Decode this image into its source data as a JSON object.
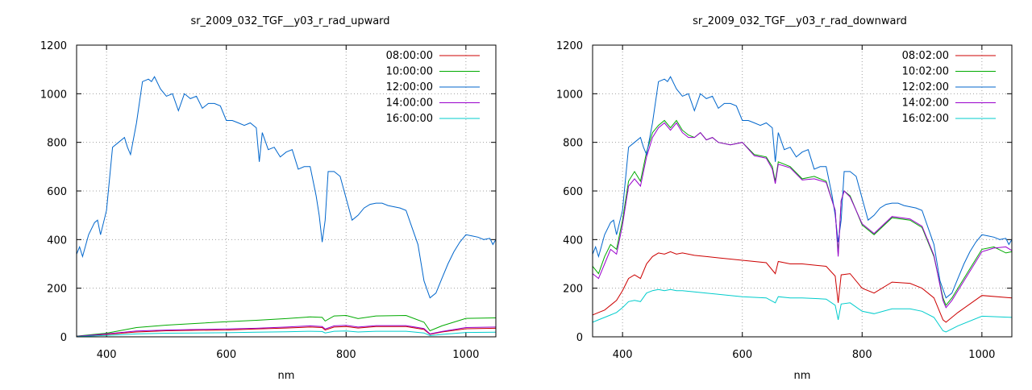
{
  "chart_data": [
    {
      "type": "line",
      "title": "sr_2009_032_TGF__y03_r_rad_upward",
      "xlabel": "nm",
      "ylabel": "",
      "xlim": [
        350,
        1050
      ],
      "ylim": [
        0,
        1200
      ],
      "xticks": [
        400,
        600,
        800,
        1000
      ],
      "yticks": [
        0,
        200,
        400,
        600,
        800,
        1000,
        1200
      ],
      "grid": true,
      "legend": "top-right",
      "series": [
        {
          "name": "08:00:00",
          "color": "#cc0000",
          "x": [
            350,
            400,
            450,
            500,
            550,
            600,
            650,
            700,
            740,
            760,
            765,
            780,
            800,
            820,
            850,
            900,
            930,
            940,
            960,
            1000,
            1050
          ],
          "y": [
            2,
            10,
            20,
            25,
            27,
            28,
            32,
            36,
            40,
            38,
            28,
            40,
            42,
            36,
            42,
            42,
            30,
            10,
            20,
            33,
            35
          ]
        },
        {
          "name": "10:00:00",
          "color": "#00aa00",
          "x": [
            350,
            400,
            450,
            500,
            550,
            600,
            650,
            700,
            740,
            760,
            765,
            780,
            800,
            820,
            850,
            900,
            930,
            940,
            960,
            1000,
            1050
          ],
          "y": [
            3,
            15,
            38,
            48,
            55,
            62,
            68,
            75,
            82,
            80,
            65,
            86,
            88,
            75,
            86,
            88,
            60,
            25,
            45,
            76,
            78
          ]
        },
        {
          "name": "12:00:00",
          "color": "#0066cc",
          "x": [
            350,
            355,
            360,
            370,
            380,
            385,
            390,
            400,
            410,
            420,
            430,
            435,
            440,
            450,
            460,
            470,
            475,
            480,
            490,
            500,
            510,
            520,
            530,
            540,
            550,
            560,
            570,
            580,
            590,
            600,
            610,
            620,
            630,
            640,
            650,
            655,
            660,
            670,
            680,
            690,
            700,
            710,
            720,
            730,
            740,
            750,
            755,
            760,
            765,
            770,
            780,
            790,
            800,
            810,
            820,
            830,
            840,
            850,
            860,
            870,
            880,
            890,
            900,
            910,
            920,
            930,
            940,
            950,
            960,
            970,
            980,
            990,
            1000,
            1010,
            1020,
            1030,
            1040,
            1045,
            1050
          ],
          "y": [
            340,
            370,
            330,
            420,
            470,
            480,
            420,
            520,
            780,
            800,
            820,
            780,
            750,
            880,
            1050,
            1060,
            1050,
            1070,
            1020,
            990,
            1000,
            930,
            1000,
            980,
            990,
            940,
            960,
            960,
            950,
            890,
            890,
            880,
            870,
            880,
            860,
            720,
            840,
            770,
            780,
            740,
            760,
            770,
            690,
            700,
            700,
            580,
            500,
            390,
            480,
            680,
            680,
            660,
            570,
            480,
            500,
            530,
            545,
            550,
            550,
            540,
            535,
            530,
            520,
            450,
            380,
            230,
            160,
            180,
            240,
            300,
            350,
            390,
            420,
            415,
            410,
            400,
            405,
            380,
            400
          ]
        },
        {
          "name": "14:00:00",
          "color": "#9900cc",
          "x": [
            350,
            400,
            450,
            500,
            550,
            600,
            650,
            700,
            740,
            760,
            765,
            780,
            800,
            820,
            850,
            900,
            930,
            940,
            960,
            1000,
            1050
          ],
          "y": [
            2,
            12,
            24,
            28,
            30,
            32,
            35,
            40,
            45,
            42,
            32,
            45,
            47,
            40,
            46,
            46,
            34,
            12,
            22,
            38,
            40
          ]
        },
        {
          "name": "16:00:00",
          "color": "#00cccc",
          "x": [
            350,
            400,
            450,
            500,
            550,
            600,
            650,
            700,
            740,
            760,
            765,
            780,
            800,
            820,
            850,
            900,
            930,
            940,
            960,
            1000,
            1050
          ],
          "y": [
            1,
            6,
            12,
            15,
            16,
            17,
            19,
            21,
            23,
            22,
            16,
            23,
            24,
            20,
            23,
            23,
            16,
            5,
            10,
            18,
            19
          ]
        }
      ]
    },
    {
      "type": "line",
      "title": "sr_2009_032_TGF__y03_r_rad_downward",
      "xlabel": "nm",
      "ylabel": "",
      "xlim": [
        350,
        1050
      ],
      "ylim": [
        0,
        1200
      ],
      "xticks": [
        400,
        600,
        800,
        1000
      ],
      "yticks": [
        0,
        200,
        400,
        600,
        800,
        1000,
        1200
      ],
      "grid": true,
      "legend": "top-right",
      "series": [
        {
          "name": "08:02:00",
          "color": "#cc0000",
          "x": [
            350,
            360,
            370,
            380,
            390,
            400,
            410,
            420,
            430,
            440,
            450,
            460,
            470,
            480,
            490,
            500,
            520,
            540,
            560,
            600,
            640,
            655,
            660,
            680,
            700,
            740,
            755,
            760,
            765,
            780,
            800,
            820,
            850,
            880,
            900,
            920,
            935,
            940,
            960,
            1000,
            1050
          ],
          "y": [
            90,
            100,
            110,
            130,
            150,
            190,
            240,
            255,
            240,
            300,
            330,
            345,
            340,
            350,
            340,
            345,
            335,
            330,
            325,
            315,
            305,
            260,
            310,
            300,
            300,
            290,
            250,
            140,
            255,
            260,
            200,
            180,
            225,
            220,
            200,
            160,
            70,
            60,
            100,
            170,
            160
          ]
        },
        {
          "name": "10:02:00",
          "color": "#00aa00",
          "x": [
            350,
            360,
            370,
            380,
            390,
            400,
            410,
            420,
            430,
            440,
            450,
            460,
            470,
            480,
            490,
            500,
            510,
            520,
            530,
            540,
            550,
            560,
            580,
            600,
            620,
            640,
            650,
            655,
            660,
            680,
            700,
            720,
            740,
            755,
            760,
            765,
            770,
            780,
            800,
            820,
            850,
            880,
            900,
            920,
            935,
            940,
            950,
            960,
            980,
            1000,
            1020,
            1040,
            1050
          ],
          "y": [
            290,
            260,
            330,
            380,
            360,
            480,
            640,
            680,
            640,
            760,
            840,
            870,
            890,
            860,
            890,
            850,
            830,
            820,
            840,
            810,
            820,
            800,
            790,
            800,
            750,
            740,
            700,
            640,
            720,
            700,
            650,
            660,
            640,
            520,
            340,
            560,
            600,
            580,
            460,
            420,
            490,
            480,
            450,
            330,
            160,
            130,
            160,
            200,
            280,
            360,
            370,
            345,
            350
          ]
        },
        {
          "name": "12:02:00",
          "color": "#0066cc",
          "x": [
            350,
            355,
            360,
            370,
            380,
            385,
            390,
            400,
            410,
            420,
            430,
            435,
            440,
            450,
            460,
            470,
            475,
            480,
            490,
            500,
            510,
            520,
            530,
            540,
            550,
            560,
            570,
            580,
            590,
            600,
            610,
            620,
            630,
            640,
            650,
            655,
            660,
            670,
            680,
            690,
            700,
            710,
            720,
            730,
            740,
            750,
            755,
            760,
            765,
            770,
            780,
            790,
            800,
            810,
            820,
            830,
            840,
            850,
            860,
            870,
            880,
            890,
            900,
            910,
            920,
            930,
            940,
            950,
            960,
            970,
            980,
            990,
            1000,
            1010,
            1020,
            1030,
            1040,
            1045,
            1050
          ],
          "y": [
            340,
            370,
            330,
            420,
            470,
            480,
            420,
            520,
            780,
            800,
            820,
            780,
            750,
            880,
            1050,
            1060,
            1050,
            1070,
            1020,
            990,
            1000,
            930,
            1000,
            980,
            990,
            940,
            960,
            960,
            950,
            890,
            890,
            880,
            870,
            880,
            860,
            720,
            840,
            770,
            780,
            740,
            760,
            770,
            690,
            700,
            700,
            580,
            500,
            390,
            480,
            680,
            680,
            660,
            570,
            480,
            500,
            530,
            545,
            550,
            550,
            540,
            535,
            530,
            520,
            450,
            380,
            230,
            160,
            180,
            240,
            300,
            350,
            390,
            420,
            415,
            410,
            400,
            405,
            380,
            400
          ]
        },
        {
          "name": "14:02:00",
          "color": "#9900cc",
          "x": [
            350,
            360,
            370,
            380,
            390,
            400,
            410,
            420,
            430,
            440,
            450,
            460,
            470,
            480,
            490,
            500,
            510,
            520,
            530,
            540,
            550,
            560,
            580,
            600,
            620,
            640,
            650,
            655,
            660,
            680,
            700,
            720,
            740,
            755,
            760,
            765,
            770,
            780,
            800,
            820,
            850,
            880,
            900,
            920,
            935,
            940,
            950,
            960,
            980,
            1000,
            1020,
            1040,
            1050
          ],
          "y": [
            260,
            240,
            300,
            360,
            340,
            460,
            620,
            650,
            620,
            740,
            820,
            860,
            880,
            850,
            880,
            840,
            820,
            820,
            840,
            810,
            820,
            800,
            790,
            800,
            745,
            735,
            690,
            630,
            710,
            695,
            645,
            650,
            635,
            520,
            330,
            560,
            600,
            575,
            465,
            425,
            495,
            485,
            455,
            335,
            150,
            120,
            150,
            190,
            270,
            350,
            365,
            370,
            355
          ]
        },
        {
          "name": "16:02:00",
          "color": "#00cccc",
          "x": [
            350,
            360,
            370,
            380,
            390,
            400,
            410,
            420,
            430,
            440,
            450,
            460,
            470,
            480,
            490,
            500,
            520,
            540,
            560,
            600,
            640,
            655,
            660,
            680,
            700,
            740,
            755,
            760,
            765,
            780,
            800,
            820,
            850,
            880,
            900,
            920,
            935,
            940,
            960,
            1000,
            1050
          ],
          "y": [
            60,
            70,
            80,
            90,
            100,
            120,
            145,
            150,
            145,
            180,
            190,
            195,
            190,
            195,
            190,
            190,
            185,
            180,
            175,
            165,
            160,
            140,
            165,
            160,
            160,
            155,
            130,
            70,
            135,
            140,
            105,
            95,
            115,
            115,
            105,
            80,
            25,
            20,
            45,
            85,
            80
          ]
        }
      ]
    }
  ]
}
